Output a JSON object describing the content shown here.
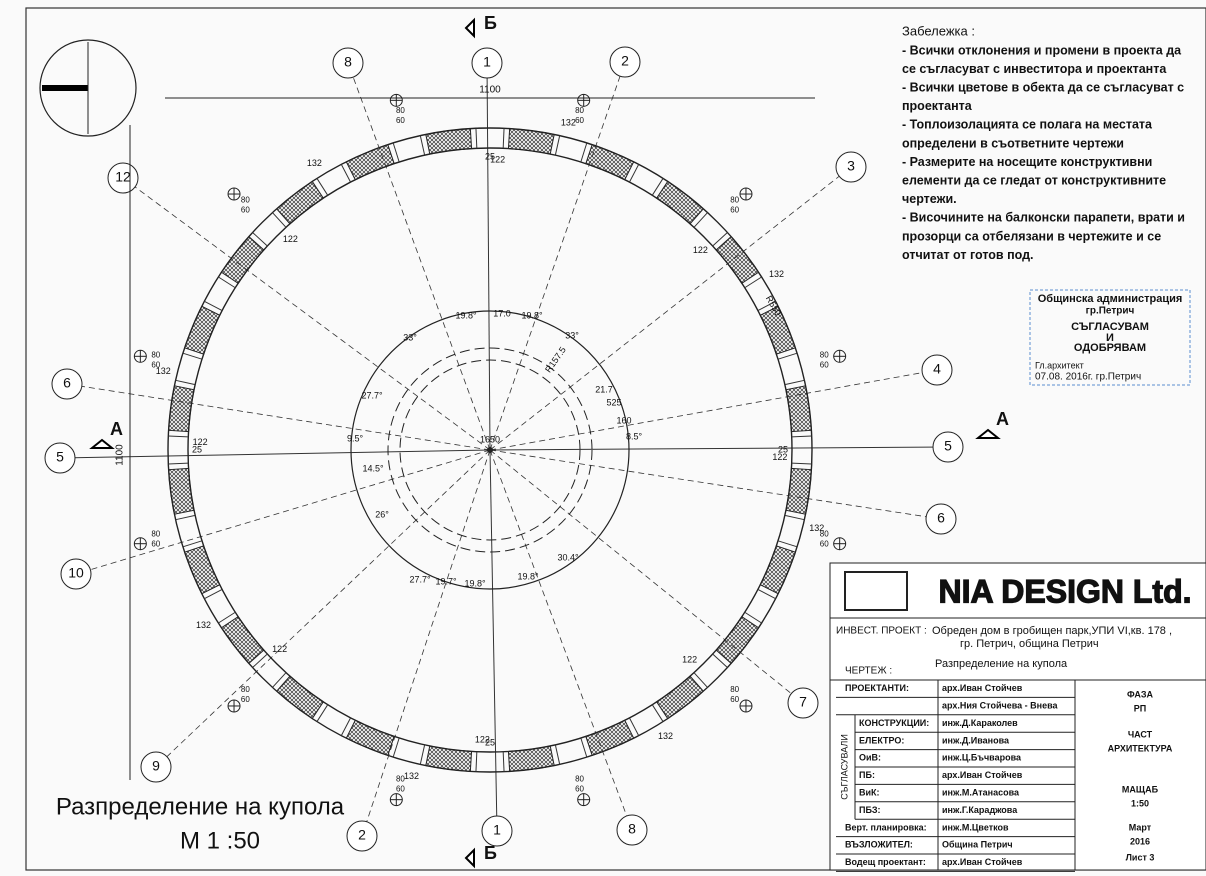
{
  "drawing": {
    "title": "Разпределение на купола",
    "scale": "М 1 :50",
    "section_a": "А",
    "section_b": "Б",
    "axes": [
      "1",
      "2",
      "3",
      "4",
      "5",
      "6",
      "7",
      "8",
      "1",
      "2",
      "9",
      "10",
      "5",
      "6",
      "12",
      "8"
    ],
    "span_horizontal": "1100",
    "span_vertical": "1100",
    "radius_outer": "R550",
    "radius_inner": "R157.5",
    "inner_length": "525",
    "inner_short": "160",
    "center_mark": "1650",
    "angle_labels": [
      "19.8°",
      "17.0",
      "19.8°",
      "33°",
      "33°",
      "27.7°",
      "21.7",
      "8.5°",
      "9.5°",
      "14.5°",
      "26°",
      "27.7°",
      "19.7°",
      "19.8°",
      "19.8°",
      "30.4°"
    ],
    "window_outer": "132",
    "window_inner": "122",
    "pier": "25",
    "sill_a": "80",
    "sill_b": "60"
  },
  "notes": {
    "heading": "Забележка :",
    "lines": [
      "- Всички отклонения и промени в проекта да",
      "се съгласуват с инвеститора и проектанта",
      "- Всички цветове в обекта да се съгласуват с",
      "проектанта",
      "- Топлоизолацията се полага на местата",
      "определени в съответните чертежи",
      "- Размерите на носещите конструктивни",
      "елементи да се гледат от конструктивните",
      "чертежи.",
      "- Височините на балконски парапети, врати и",
      "прозорци са отбелязани в чертежите и се",
      "отчитат от готов под."
    ]
  },
  "stamp": {
    "lines": [
      "Общинска администрация",
      "гр.Петрич",
      "СЪГЛАСУВАМ",
      "И",
      "ОДОБРЯВАМ"
    ],
    "architect": "Гл.архитект",
    "date": "07.08. 2016г. гр.Петрич"
  },
  "title_block": {
    "company": "NIA DESIGN Ltd.",
    "project_label": "ИНВЕСТ. ПРОЕКТ :",
    "project_lines": [
      "Обреден дом в гробищен парк,УПИ VI,кв. 178 ,",
      "гр. Петрич, община Петрич"
    ],
    "drawing_label": "ЧЕРТЕЖ :",
    "drawing_name": "Разпределение на купола",
    "agreed": "СЪГЛАСУВАЛИ",
    "rows": [
      [
        "ПРОЕКТАНТИ:",
        "арх.Иван Стойчев"
      ],
      [
        "",
        "арх.Ния Стойчева - Внева"
      ],
      [
        "КОНСТРУКЦИИ:",
        "инж.Д.Караколев"
      ],
      [
        "ЕЛЕКТРО:",
        "инж.Д.Иванова"
      ],
      [
        "ОиВ:",
        "инж.Ц.Бъчварова"
      ],
      [
        "ПБ:",
        "арх.Иван Стойчев"
      ],
      [
        "ВиК:",
        "инж.М.Атанасова"
      ],
      [
        "ПБЗ:",
        "инж.Г.Караджова"
      ],
      [
        "Верт. планировка:",
        "инж.М.Цветков"
      ],
      [
        "ВЪЗЛОЖИТЕЛ:",
        "Община Петрич"
      ],
      [
        "Водещ проектант:",
        "арх.Иван Стойчев"
      ]
    ],
    "right": [
      [
        "ФАЗА",
        "РП"
      ],
      [
        "ЧАСТ",
        "АРХИТЕКТУРА"
      ],
      [
        "МАЩАБ",
        "1:50"
      ],
      [
        "Март",
        "2016"
      ],
      [
        "Лист 3"
      ]
    ]
  }
}
